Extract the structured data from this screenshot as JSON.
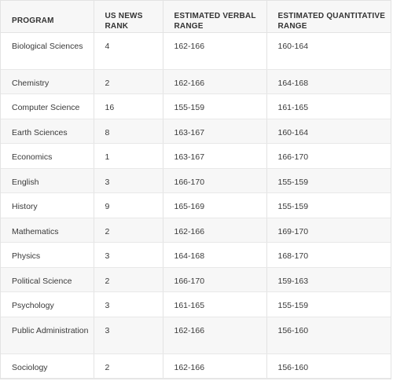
{
  "table": {
    "headers": [
      "PROGRAM",
      "US NEWS RANK",
      "ESTIMATED VERBAL RANGE",
      "ESTIMATED QUANTITATIVE RANGE"
    ],
    "rows": [
      {
        "program": "Biological Sciences",
        "rank": "4",
        "verbal": "162-166",
        "quant": "160-164"
      },
      {
        "program": "Chemistry",
        "rank": "2",
        "verbal": "162-166",
        "quant": "164-168"
      },
      {
        "program": "Computer Science",
        "rank": "16",
        "verbal": "155-159",
        "quant": "161-165"
      },
      {
        "program": "Earth Sciences",
        "rank": "8",
        "verbal": "163-167",
        "quant": "160-164"
      },
      {
        "program": "Economics",
        "rank": "1",
        "verbal": "163-167",
        "quant": "166-170"
      },
      {
        "program": "English",
        "rank": "3",
        "verbal": "166-170",
        "quant": "155-159"
      },
      {
        "program": "History",
        "rank": "9",
        "verbal": "165-169",
        "quant": "155-159"
      },
      {
        "program": "Mathematics",
        "rank": "2",
        "verbal": "162-166",
        "quant": "169-170"
      },
      {
        "program": "Physics",
        "rank": "3",
        "verbal": "164-168",
        "quant": "168-170"
      },
      {
        "program": "Political Science",
        "rank": "2",
        "verbal": "166-170",
        "quant": "159-163"
      },
      {
        "program": "Psychology",
        "rank": "3",
        "verbal": "161-165",
        "quant": "155-159"
      },
      {
        "program": "Public Administration",
        "rank": "3",
        "verbal": "162-166",
        "quant": "156-160"
      },
      {
        "program": "Sociology",
        "rank": "2",
        "verbal": "162-166",
        "quant": "156-160"
      }
    ]
  }
}
